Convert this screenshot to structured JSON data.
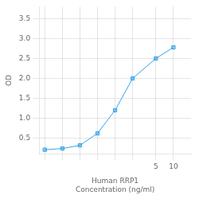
{
  "chart_data": {
    "type": "line",
    "x": [
      0.0625,
      0.125,
      0.25,
      0.5,
      1.0,
      2.0,
      5.0,
      10.0
    ],
    "values": [
      0.21,
      0.24,
      0.32,
      0.62,
      1.2,
      2.0,
      2.5,
      2.78
    ],
    "xlabel": "Human RRP1\nConcentration (ng/ml)",
    "ylabel": "OD",
    "log": "x",
    "xlim": [
      0.05,
      20
    ],
    "xticks": [
      {
        "value": 0.0625,
        "label": null
      },
      {
        "value": 0.125,
        "label": null
      },
      {
        "value": 0.25,
        "label": null
      },
      {
        "value": 0.5,
        "label": null
      },
      {
        "value": 1.0,
        "label": null
      },
      {
        "value": 2.0,
        "label": null
      },
      5,
      10
    ],
    "ylim": [
      0.1,
      3.8
    ],
    "yticks": [
      0.5,
      {
        "value": 1.0,
        "label": "1.0"
      },
      1.5,
      {
        "value": 2.0,
        "label": "2.0"
      },
      2.5,
      {
        "value": 3.0,
        "label": "3.0"
      },
      3.5
    ],
    "marker": "square",
    "grid": true
  }
}
